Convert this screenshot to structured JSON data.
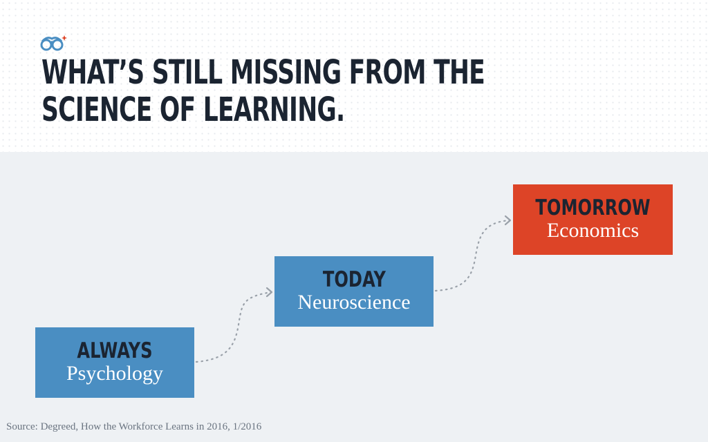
{
  "header": {
    "logo_icon": "glasses-logo-icon",
    "title_line1": "WHAT’S STILL MISSING FROM THE",
    "title_line2": "SCIENCE OF LEARNING."
  },
  "stages": [
    {
      "label": "ALWAYS",
      "subject": "Psychology",
      "color": "#4a8ec2"
    },
    {
      "label": "TODAY",
      "subject": "Neuroscience",
      "color": "#4a8ec2"
    },
    {
      "label": "TOMORROW",
      "subject": "Economics",
      "color": "#dd4427"
    }
  ],
  "connectors": [
    {
      "from": "ALWAYS",
      "to": "TODAY",
      "style": "dotted-arrow"
    },
    {
      "from": "TODAY",
      "to": "TOMORROW",
      "style": "dotted-arrow"
    }
  ],
  "source": "Source: Degreed, How the Workforce Learns in 2016, 1/2016"
}
